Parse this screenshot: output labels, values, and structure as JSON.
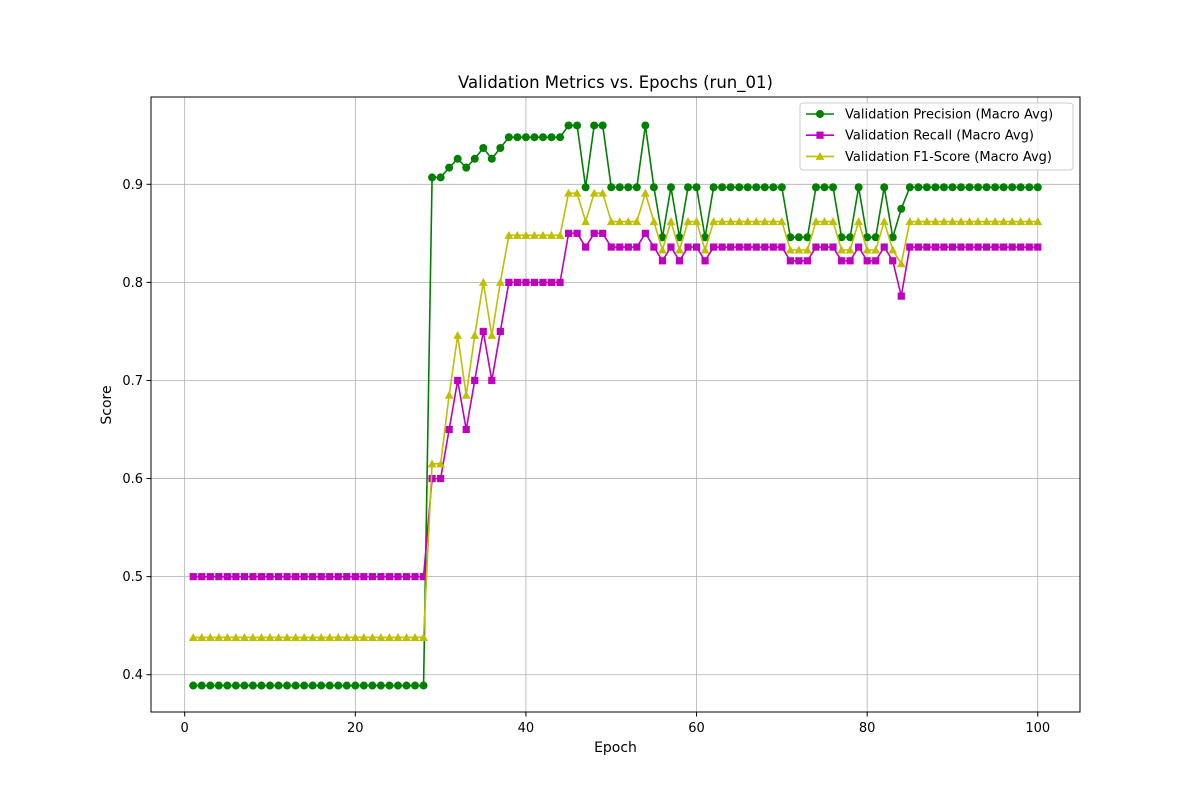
{
  "chart_data": {
    "type": "line",
    "title": "Validation Metrics vs. Epochs (run_01)",
    "xlabel": "Epoch",
    "ylabel": "Score",
    "xlim": [
      -3.95,
      104.95
    ],
    "ylim": [
      0.362,
      0.989
    ],
    "xticks": [
      0,
      20,
      40,
      60,
      80,
      100
    ],
    "yticks": [
      0.4,
      0.5,
      0.6,
      0.7,
      0.8,
      0.9
    ],
    "grid": true,
    "legend_position": "upper right",
    "x": [
      1,
      2,
      3,
      4,
      5,
      6,
      7,
      8,
      9,
      10,
      11,
      12,
      13,
      14,
      15,
      16,
      17,
      18,
      19,
      20,
      21,
      22,
      23,
      24,
      25,
      26,
      27,
      28,
      29,
      30,
      31,
      32,
      33,
      34,
      35,
      36,
      37,
      38,
      39,
      40,
      41,
      42,
      43,
      44,
      45,
      46,
      47,
      48,
      49,
      50,
      51,
      52,
      53,
      54,
      55,
      56,
      57,
      58,
      59,
      60,
      61,
      62,
      63,
      64,
      65,
      66,
      67,
      68,
      69,
      70,
      71,
      72,
      73,
      74,
      75,
      76,
      77,
      78,
      79,
      80,
      81,
      82,
      83,
      84,
      85,
      86,
      87,
      88,
      89,
      90,
      91,
      92,
      93,
      94,
      95,
      96,
      97,
      98,
      99,
      100
    ],
    "series": [
      {
        "name": "Validation Precision (Macro Avg)",
        "color": "#008000",
        "marker": "circle",
        "values": [
          0.389,
          0.389,
          0.389,
          0.389,
          0.389,
          0.389,
          0.389,
          0.389,
          0.389,
          0.389,
          0.389,
          0.389,
          0.389,
          0.389,
          0.389,
          0.389,
          0.389,
          0.389,
          0.389,
          0.389,
          0.389,
          0.389,
          0.389,
          0.389,
          0.389,
          0.389,
          0.389,
          0.389,
          0.907,
          0.907,
          0.917,
          0.926,
          0.917,
          0.926,
          0.937,
          0.926,
          0.937,
          0.948,
          0.948,
          0.948,
          0.948,
          0.948,
          0.948,
          0.948,
          0.96,
          0.96,
          0.897,
          0.96,
          0.96,
          0.897,
          0.897,
          0.897,
          0.897,
          0.96,
          0.897,
          0.846,
          0.897,
          0.846,
          0.897,
          0.897,
          0.846,
          0.897,
          0.897,
          0.897,
          0.897,
          0.897,
          0.897,
          0.897,
          0.897,
          0.897,
          0.846,
          0.846,
          0.846,
          0.897,
          0.897,
          0.897,
          0.846,
          0.846,
          0.897,
          0.846,
          0.846,
          0.897,
          0.846,
          0.875,
          0.897,
          0.897,
          0.897,
          0.897,
          0.897,
          0.897,
          0.897,
          0.897,
          0.897,
          0.897,
          0.897,
          0.897,
          0.897,
          0.897,
          0.897,
          0.897
        ]
      },
      {
        "name": "Validation Recall (Macro Avg)",
        "color": "#bf00bf",
        "marker": "square",
        "values": [
          0.5,
          0.5,
          0.5,
          0.5,
          0.5,
          0.5,
          0.5,
          0.5,
          0.5,
          0.5,
          0.5,
          0.5,
          0.5,
          0.5,
          0.5,
          0.5,
          0.5,
          0.5,
          0.5,
          0.5,
          0.5,
          0.5,
          0.5,
          0.5,
          0.5,
          0.5,
          0.5,
          0.5,
          0.6,
          0.6,
          0.65,
          0.7,
          0.65,
          0.7,
          0.75,
          0.7,
          0.75,
          0.8,
          0.8,
          0.8,
          0.8,
          0.8,
          0.8,
          0.8,
          0.85,
          0.85,
          0.836,
          0.85,
          0.85,
          0.836,
          0.836,
          0.836,
          0.836,
          0.85,
          0.836,
          0.822,
          0.836,
          0.822,
          0.836,
          0.836,
          0.822,
          0.836,
          0.836,
          0.836,
          0.836,
          0.836,
          0.836,
          0.836,
          0.836,
          0.836,
          0.822,
          0.822,
          0.822,
          0.836,
          0.836,
          0.836,
          0.822,
          0.822,
          0.836,
          0.822,
          0.822,
          0.836,
          0.822,
          0.786,
          0.836,
          0.836,
          0.836,
          0.836,
          0.836,
          0.836,
          0.836,
          0.836,
          0.836,
          0.836,
          0.836,
          0.836,
          0.836,
          0.836,
          0.836,
          0.836
        ]
      },
      {
        "name": "Validation F1-Score (Macro Avg)",
        "color": "#bfbf00",
        "marker": "triangle",
        "values": [
          0.438,
          0.438,
          0.438,
          0.438,
          0.438,
          0.438,
          0.438,
          0.438,
          0.438,
          0.438,
          0.438,
          0.438,
          0.438,
          0.438,
          0.438,
          0.438,
          0.438,
          0.438,
          0.438,
          0.438,
          0.438,
          0.438,
          0.438,
          0.438,
          0.438,
          0.438,
          0.438,
          0.438,
          0.615,
          0.615,
          0.685,
          0.746,
          0.685,
          0.746,
          0.8,
          0.746,
          0.8,
          0.848,
          0.848,
          0.848,
          0.848,
          0.848,
          0.848,
          0.848,
          0.891,
          0.891,
          0.862,
          0.891,
          0.891,
          0.862,
          0.862,
          0.862,
          0.862,
          0.891,
          0.862,
          0.833,
          0.862,
          0.833,
          0.862,
          0.862,
          0.833,
          0.862,
          0.862,
          0.862,
          0.862,
          0.862,
          0.862,
          0.862,
          0.862,
          0.862,
          0.833,
          0.833,
          0.833,
          0.862,
          0.862,
          0.862,
          0.833,
          0.833,
          0.862,
          0.833,
          0.833,
          0.862,
          0.833,
          0.819,
          0.862,
          0.862,
          0.862,
          0.862,
          0.862,
          0.862,
          0.862,
          0.862,
          0.862,
          0.862,
          0.862,
          0.862,
          0.862,
          0.862,
          0.862,
          0.862
        ]
      }
    ]
  }
}
